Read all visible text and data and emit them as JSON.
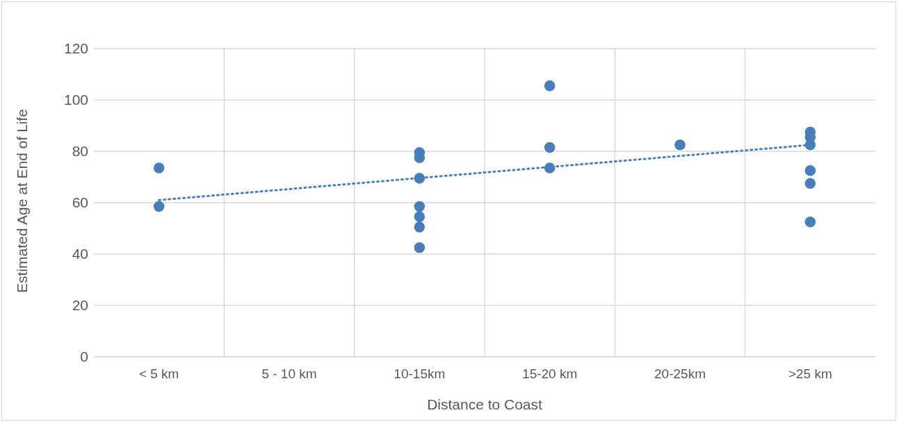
{
  "chart_data": {
    "type": "scatter",
    "xlabel": "Distance to Coast",
    "ylabel": "Estimated Age at End of Life",
    "categories": [
      "< 5 km",
      "5 - 10 km",
      "10-15km",
      "15-20 km",
      "20-25km",
      ">25 km"
    ],
    "ylim": [
      0,
      120
    ],
    "yticks": [
      0,
      20,
      40,
      60,
      80,
      100,
      120
    ],
    "grid": true,
    "series": [
      {
        "marker": "circle",
        "color": "#4a7ebb",
        "x": [
          "< 5 km",
          "< 5 km",
          "10-15km",
          "10-15km",
          "10-15km",
          "10-15km",
          "10-15km",
          "10-15km",
          "10-15km",
          "15-20 km",
          "15-20 km",
          "15-20 km",
          "20-25km",
          ">25 km",
          ">25 km",
          ">25 km",
          ">25 km",
          ">25 km",
          ">25 km"
        ],
        "values": [
          73.5,
          58.5,
          79.5,
          77.5,
          69.5,
          58.5,
          54.5,
          50.5,
          42.5,
          105.5,
          81.5,
          73.5,
          82.5,
          87.5,
          85.5,
          82.5,
          72.5,
          67.5,
          52.5
        ]
      },
      {
        "type": "line",
        "color": "#4a7ebb",
        "line_style": "dotted",
        "x": [
          "< 5 km",
          ">25 km"
        ],
        "values": [
          61,
          82.5
        ]
      }
    ]
  }
}
